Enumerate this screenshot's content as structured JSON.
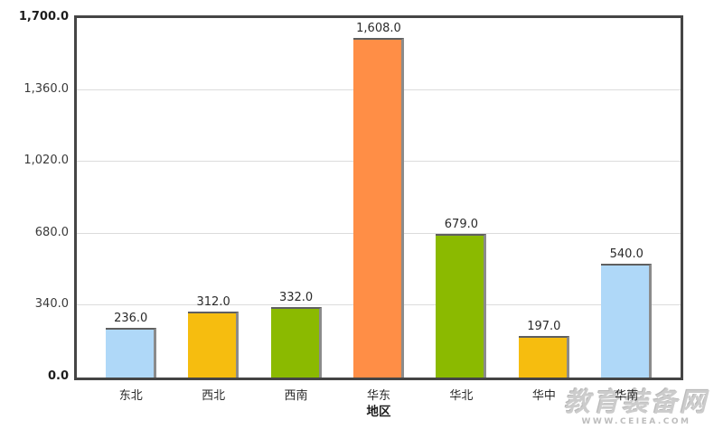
{
  "watermark": {
    "brand": "教育装备网",
    "url": "WWW.CEIEA.COM"
  },
  "chart_data": {
    "type": "bar",
    "title": "",
    "xlabel": "地区",
    "ylabel": "",
    "categories": [
      "东北",
      "西北",
      "西南",
      "华东",
      "华北",
      "华中",
      "华南"
    ],
    "values": [
      236.0,
      312.0,
      332.0,
      1608.0,
      679.0,
      197.0,
      540.0
    ],
    "value_labels": [
      "236.0",
      "312.0",
      "332.0",
      "1,608.0",
      "679.0",
      "197.0",
      "540.0"
    ],
    "bar_colors": [
      "#AFD8F8",
      "#F6BD0F",
      "#8BBA00",
      "#FF8E46",
      "#8BBA00",
      "#F6BD0F",
      "#AFD8F8"
    ],
    "bar_shadow_color": "#8b8b8b",
    "ylim": [
      0,
      1700
    ],
    "yticks": [
      "0.0",
      "340.0",
      "680.0",
      "1,020.0",
      "1,360.0",
      "1,700.0"
    ],
    "ytick_values": [
      0,
      340,
      680,
      1020,
      1360,
      1700
    ],
    "grid": true,
    "legend": false,
    "plot_border_color": "#454545",
    "gridline_color": "#dcdcdc"
  }
}
